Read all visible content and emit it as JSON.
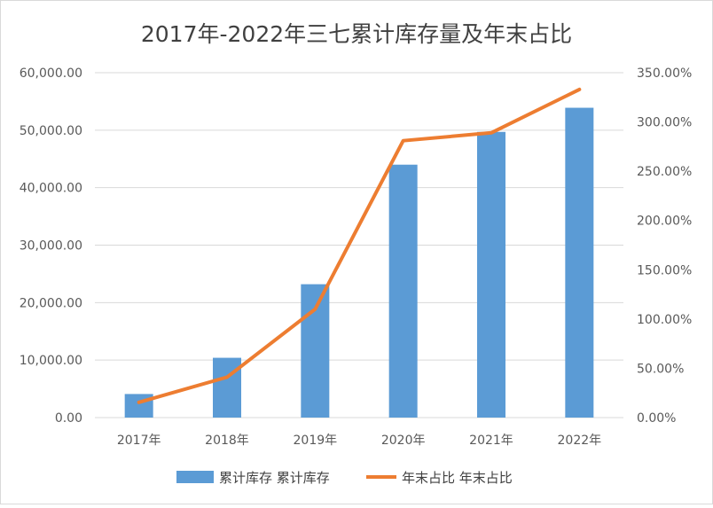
{
  "chart_data": {
    "type": "bar",
    "title": "2017年-2022年三七累计库存量及年末占比",
    "categories": [
      "2017年",
      "2018年",
      "2019年",
      "2020年",
      "2021年",
      "2022年"
    ],
    "series": [
      {
        "name": "累计库存 累计库存",
        "type": "bar",
        "axis": "left",
        "color": "#5B9BD5",
        "values": [
          4100,
          10400,
          23200,
          44000,
          49700,
          53900
        ]
      },
      {
        "name": "年末占比 年末占比",
        "type": "line",
        "axis": "right",
        "color": "#ED7D31",
        "values": [
          15.5,
          41.0,
          110.0,
          281.0,
          289.0,
          333.0
        ]
      }
    ],
    "y_left": {
      "ylim": [
        0,
        60000
      ],
      "ticks": [
        "0.00",
        "10,000.00",
        "20,000.00",
        "30,000.00",
        "40,000.00",
        "50,000.00",
        "60,000.00"
      ]
    },
    "y_right": {
      "ylim": [
        0,
        350
      ],
      "ticks": [
        "0.00%",
        "50.00%",
        "100.00%",
        "150.00%",
        "200.00%",
        "250.00%",
        "300.00%",
        "350.00%"
      ]
    },
    "grid": true,
    "legend": "bottom",
    "colors": {
      "grid": "#d9d9d9",
      "text": "#595959"
    }
  }
}
